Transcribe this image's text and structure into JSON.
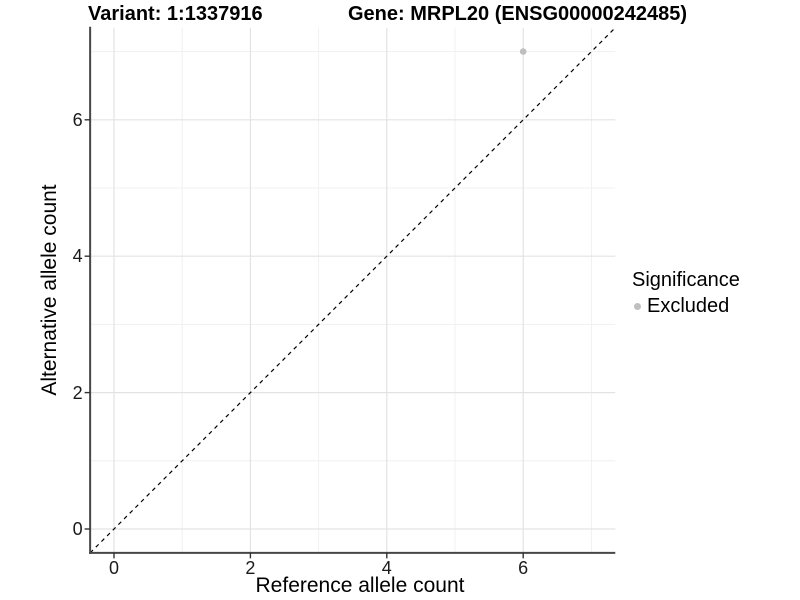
{
  "chart_data": {
    "type": "scatter",
    "titles": {
      "left": "Variant: 1:1337916",
      "right": "Gene: MRPL20 (ENSG00000242485)"
    },
    "xlabel": "Reference allele count",
    "ylabel": "Alternative allele count",
    "xlim": [
      -0.35,
      7.35
    ],
    "ylim": [
      -0.35,
      7.35
    ],
    "x_ticks": [
      0,
      2,
      4,
      6
    ],
    "y_ticks": [
      0,
      2,
      4,
      6
    ],
    "minor_gridlines": [
      1,
      3,
      5,
      7
    ],
    "grid": "major and minor, light grey on white panel",
    "series": [
      {
        "name": "Excluded",
        "color": "#bfbfbf",
        "points": [
          {
            "x": 6,
            "y": 7
          }
        ]
      }
    ],
    "reference_line": {
      "slope": 1,
      "intercept": 0,
      "style": "dashed",
      "color": "#000000"
    },
    "legend": {
      "title": "Significance",
      "position": "right",
      "items": [
        {
          "label": "Excluded",
          "color": "#bfbfbf"
        }
      ]
    }
  },
  "colors": {
    "background": "#ffffff",
    "grid_major": "#e3e3e3",
    "grid_minor": "#f0f0f0",
    "axis_line": "#474747",
    "tick_mark": "#333333",
    "text": "#000000",
    "point": "#bfbfbf"
  }
}
